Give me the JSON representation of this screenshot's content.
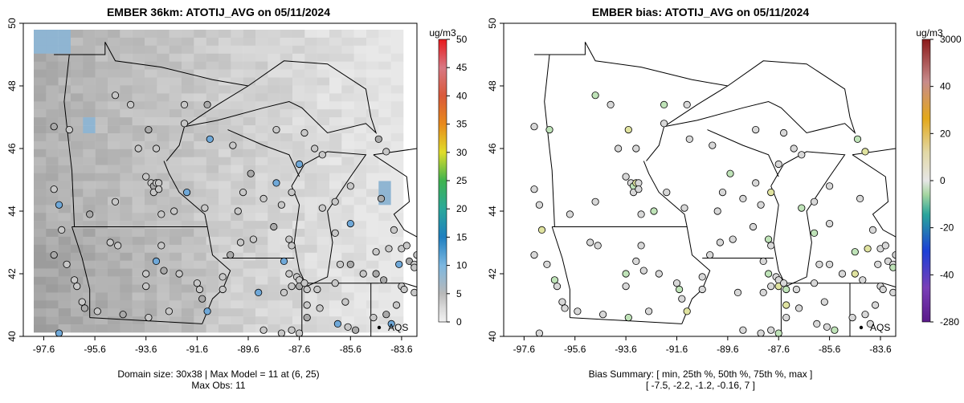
{
  "chart_data": [
    {
      "type": "heatmap",
      "title": "EMBER 36km: ATOTIJ_AVG on 05/11/2024",
      "xlim": [
        -98.4,
        -83.0
      ],
      "ylim": [
        40.0,
        50.0
      ],
      "x_ticks": [
        "-97.6",
        "-95.6",
        "-93.6",
        "-91.6",
        "-89.6",
        "-87.6",
        "-85.6",
        "-83.6"
      ],
      "y_ticks": [
        "40",
        "42",
        "44",
        "46",
        "48",
        "50"
      ],
      "colorbar_unit": "ug/m3",
      "colorbar_ticks": [
        "0",
        "5",
        "10",
        "15",
        "20",
        "25",
        "30",
        "35",
        "40",
        "45",
        "50"
      ],
      "caption_lines": [
        "Domain size: 30x38 | Max Model = 11 at (6, 25)",
        "Max Obs: 11"
      ],
      "legend_marker_label": "AQS",
      "grid": false
    },
    {
      "type": "scatter",
      "title": "EMBER bias: ATOTIJ_AVG on 05/11/2024",
      "xlim": [
        -98.4,
        -83.0
      ],
      "ylim": [
        40.0,
        50.0
      ],
      "x_ticks": [
        "-97.6",
        "-95.6",
        "-93.6",
        "-91.6",
        "-89.6",
        "-87.6",
        "-85.6",
        "-83.6"
      ],
      "y_ticks": [
        "40",
        "42",
        "44",
        "46",
        "48",
        "50"
      ],
      "colorbar_unit": "ug/m3",
      "colorbar_ticks": [
        "3000",
        "40",
        "20",
        "0",
        "-20",
        "-40",
        "-280"
      ],
      "caption_lines": [
        "Bias Summary: [ min, 25th %, 50th %, 75th %, max ]",
        "[ -7.5,   -2.2,   -1.2,   -0.16,   7 ]"
      ],
      "bias_summary": {
        "min": -7.5,
        "p25": -2.2,
        "p50": -1.2,
        "p75": -0.16,
        "max": 7
      },
      "legend_marker_label": "AQS",
      "grid": false
    }
  ],
  "colors": {
    "land_background": "#ffffff",
    "model_base_gray": "#bcbcbc",
    "boundary": "#000000"
  }
}
